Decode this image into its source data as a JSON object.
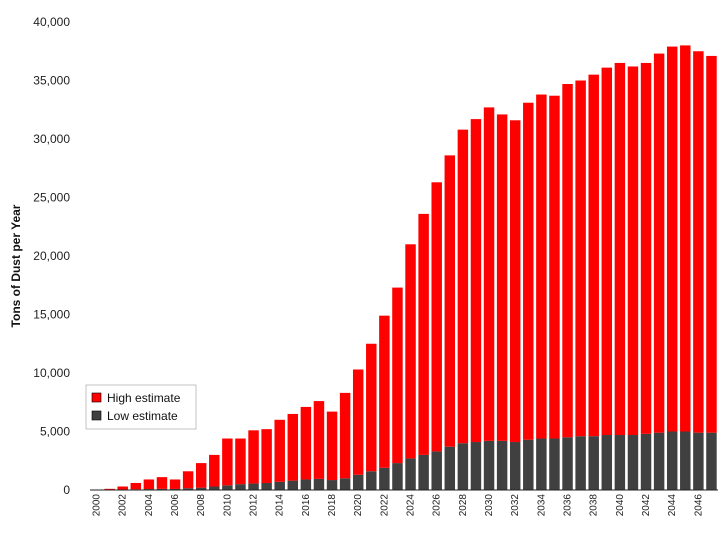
{
  "chart_data": {
    "type": "bar",
    "stacked": true,
    "title": "",
    "xlabel": "",
    "ylabel": "Tons of Dust per Year",
    "ylim": [
      0,
      40000
    ],
    "yticks": [
      0,
      5000,
      10000,
      15000,
      20000,
      25000,
      30000,
      35000,
      40000
    ],
    "ytick_labels": [
      "0",
      "5,000",
      "10,000",
      "15,000",
      "20,000",
      "25,000",
      "30,000",
      "35,000",
      "40,000"
    ],
    "categories": [
      "2000",
      "2001",
      "2002",
      "2003",
      "2004",
      "2005",
      "2006",
      "2007",
      "2008",
      "2009",
      "2010",
      "2011",
      "2012",
      "2013",
      "2014",
      "2015",
      "2016",
      "2017",
      "2018",
      "2019",
      "2020",
      "2021",
      "2022",
      "2023",
      "2024",
      "2025",
      "2026",
      "2027",
      "2028",
      "2029",
      "2030",
      "2031",
      "2032",
      "2033",
      "2034",
      "2035",
      "2036",
      "2037",
      "2038",
      "2039",
      "2040",
      "2041",
      "2042",
      "2043",
      "2044",
      "2045",
      "2046",
      "2047"
    ],
    "xtick_labels": [
      "2000",
      "2002",
      "2004",
      "2006",
      "2008",
      "2010",
      "2012",
      "2014",
      "2016",
      "2018",
      "2020",
      "2022",
      "2024",
      "2026",
      "2028",
      "2030",
      "2032",
      "2034",
      "2036",
      "2038",
      "2040",
      "2042",
      "2044",
      "2046"
    ],
    "legend_position": "left-middle",
    "series": [
      {
        "name": "Low estimate",
        "color": "#404040",
        "values": [
          0,
          10,
          30,
          60,
          80,
          100,
          90,
          150,
          200,
          300,
          400,
          500,
          550,
          600,
          700,
          800,
          900,
          950,
          850,
          1000,
          1300,
          1600,
          1900,
          2300,
          2700,
          3000,
          3300,
          3700,
          4000,
          4100,
          4200,
          4200,
          4100,
          4300,
          4400,
          4400,
          4500,
          4600,
          4600,
          4700,
          4700,
          4700,
          4800,
          4900,
          5000,
          5000,
          4900,
          4900
        ]
      },
      {
        "name": "High estimate",
        "color": "#ff0000",
        "values": [
          0,
          90,
          270,
          540,
          820,
          1000,
          810,
          1450,
          2100,
          2700,
          4000,
          3900,
          4550,
          4600,
          5300,
          5700,
          6200,
          6650,
          5850,
          7300,
          9000,
          10900,
          13000,
          15000,
          18300,
          20600,
          23000,
          24900,
          26800,
          27600,
          28500,
          27900,
          27500,
          28800,
          29400,
          29300,
          30200,
          30400,
          30900,
          31400,
          31800,
          31500,
          31700,
          32400,
          32900,
          33000,
          32600,
          32200
        ]
      }
    ]
  }
}
